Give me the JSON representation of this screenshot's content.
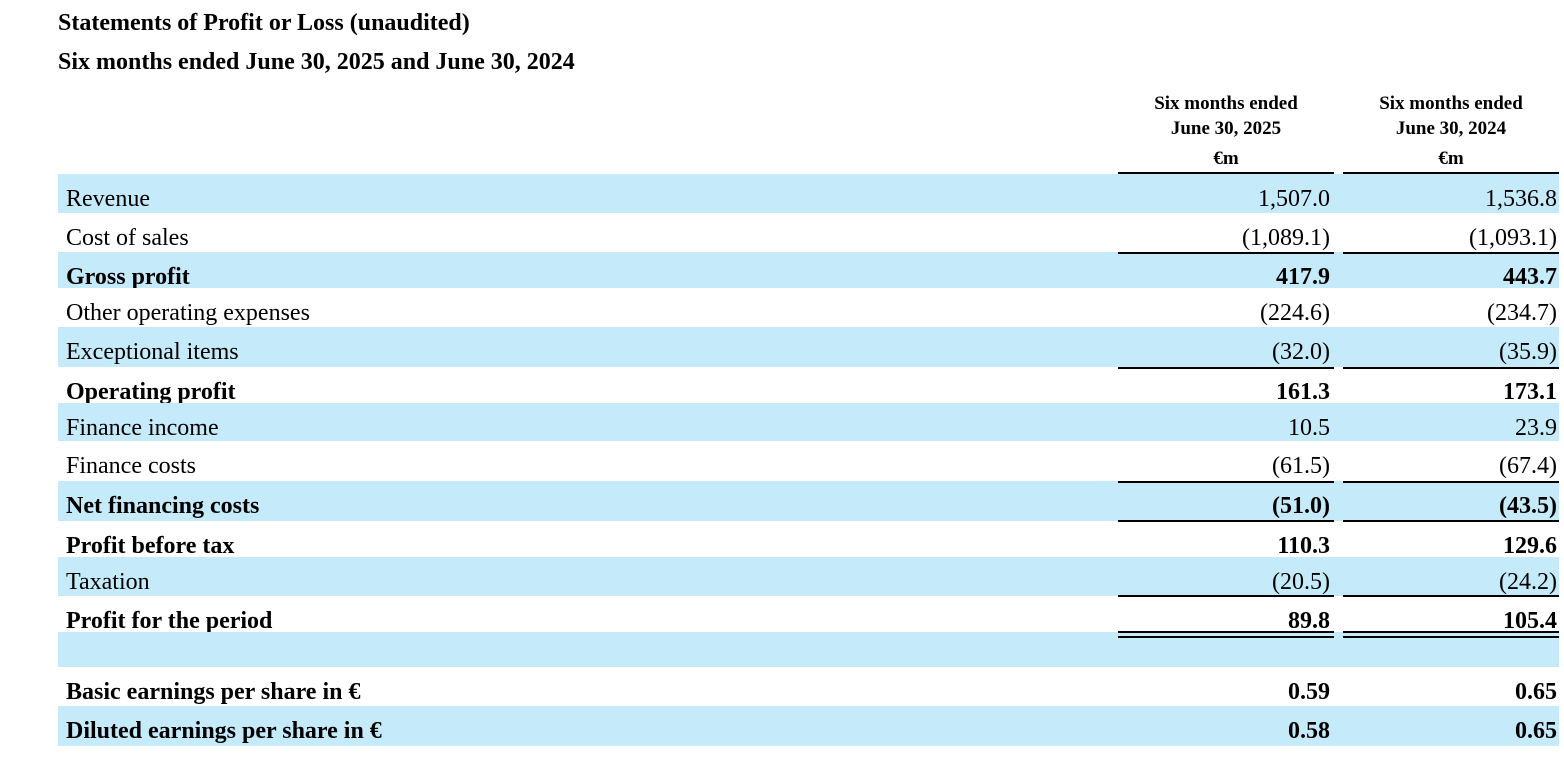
{
  "header": {
    "title": "Statements of Profit or Loss (unaudited)",
    "subtitle": "Six months ended June 30, 2025 and June 30, 2024"
  },
  "columns": [
    {
      "line1": "Six months ended",
      "line2": "June 30, 2025",
      "unit": "€m"
    },
    {
      "line1": "Six months ended",
      "line2": "June 30, 2024",
      "unit": "€m"
    }
  ],
  "rows": [
    {
      "label": "Revenue",
      "v2025": "1,507.0",
      "v2024": "1,536.8"
    },
    {
      "label": "Cost of sales",
      "v2025": "(1,089.1)",
      "v2024": "(1,093.1)"
    },
    {
      "label": "Gross profit",
      "v2025": "417.9",
      "v2024": "443.7"
    },
    {
      "label": "Other operating expenses",
      "v2025": "(224.6)",
      "v2024": "(234.7)"
    },
    {
      "label": "Exceptional items",
      "v2025": "(32.0)",
      "v2024": "(35.9)"
    },
    {
      "label": "Operating profit",
      "v2025": "161.3",
      "v2024": "173.1"
    },
    {
      "label": "Finance income",
      "v2025": "10.5",
      "v2024": "23.9"
    },
    {
      "label": "Finance costs",
      "v2025": "(61.5)",
      "v2024": "(67.4)"
    },
    {
      "label": "Net financing costs",
      "v2025": "(51.0)",
      "v2024": "(43.5)"
    },
    {
      "label": "Profit before tax",
      "v2025": "110.3",
      "v2024": "129.6"
    },
    {
      "label": "Taxation",
      "v2025": "(20.5)",
      "v2024": "(24.2)"
    },
    {
      "label": "Profit for the period",
      "v2025": "89.8",
      "v2024": "105.4"
    },
    {
      "label": "",
      "v2025": "",
      "v2024": ""
    },
    {
      "label": "Basic earnings per share in €",
      "v2025": "0.59",
      "v2024": "0.65"
    },
    {
      "label": "Diluted earnings per share in €",
      "v2025": "0.58",
      "v2024": "0.65"
    }
  ],
  "colors": {
    "row_shade": "#c5eafa",
    "text": "#000000"
  }
}
